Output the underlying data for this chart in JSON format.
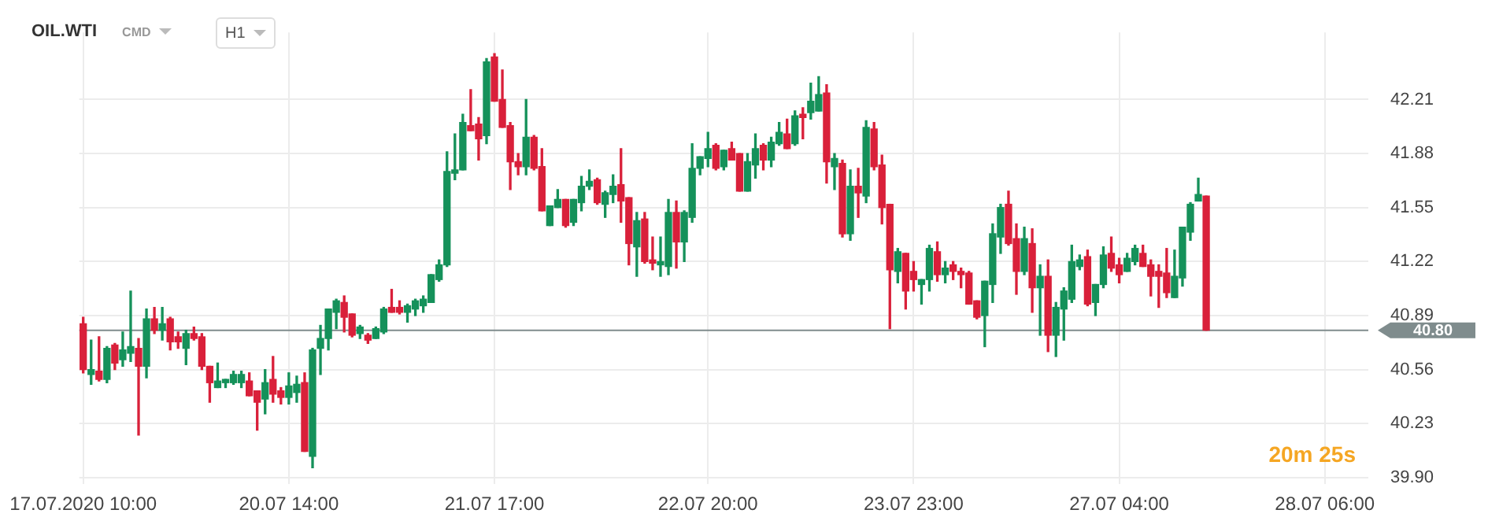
{
  "chart_data": {
    "type": "candlestick",
    "title": "OIL.WTI",
    "subtitle": "CMD",
    "annotations": [
      "H1",
      "20m 25s"
    ],
    "categories": [
      "17.07.2020 10:00",
      null,
      null,
      null,
      null,
      null,
      null,
      null,
      null,
      null,
      null,
      null,
      null,
      null,
      null,
      null,
      null,
      null,
      null,
      null,
      null,
      null,
      null,
      null,
      null,
      null,
      "20.07 14:00",
      null,
      null,
      null,
      null,
      null,
      null,
      null,
      null,
      null,
      null,
      null,
      null,
      null,
      null,
      null,
      null,
      null,
      null,
      null,
      null,
      null,
      null,
      null,
      null,
      null,
      "21.07 17:00",
      null,
      null,
      null,
      null,
      null,
      null,
      null,
      null,
      null,
      null,
      null,
      null,
      null,
      null,
      null,
      null,
      null,
      null,
      null,
      null,
      null,
      null,
      null,
      null,
      null,
      null,
      "22.07 20:00",
      null,
      null,
      null,
      null,
      null,
      null,
      null,
      null,
      null,
      null,
      null,
      null,
      null,
      null,
      null,
      null,
      null,
      null,
      null,
      null,
      null,
      null,
      null,
      null,
      null,
      "23.07 23:00",
      null,
      null,
      null,
      null,
      null,
      null,
      null,
      null,
      null,
      null,
      null,
      null,
      null,
      null,
      null,
      null,
      null,
      null,
      null,
      null,
      null,
      null,
      null,
      null,
      null,
      "27.07 04:00",
      null,
      null,
      null,
      null,
      null,
      null,
      null,
      null,
      null,
      null,
      null,
      null,
      null,
      null,
      null,
      null,
      null,
      null,
      null,
      null,
      null,
      null,
      null,
      null,
      null,
      "28.07 06:00",
      null,
      null,
      null,
      null,
      null
    ],
    "ohlc": [
      [
        40.84,
        40.88,
        40.54,
        40.56
      ],
      [
        40.53,
        40.74,
        40.47,
        40.56
      ],
      [
        40.55,
        40.76,
        40.49,
        40.5
      ],
      [
        40.5,
        40.7,
        40.48,
        40.69
      ],
      [
        40.71,
        40.72,
        40.56,
        40.6
      ],
      [
        40.62,
        40.79,
        40.58,
        40.68
      ],
      [
        40.66,
        41.04,
        40.61,
        40.7
      ],
      [
        40.69,
        40.75,
        40.16,
        40.58
      ],
      [
        40.58,
        40.93,
        40.51,
        40.87
      ],
      [
        40.87,
        40.94,
        40.78,
        40.8
      ],
      [
        40.8,
        40.94,
        40.74,
        40.84
      ],
      [
        40.87,
        40.88,
        40.68,
        40.73
      ],
      [
        40.76,
        40.79,
        40.69,
        40.73
      ],
      [
        40.69,
        40.8,
        40.59,
        40.78
      ],
      [
        40.78,
        40.82,
        40.74,
        40.75
      ],
      [
        40.76,
        40.78,
        40.56,
        40.58
      ],
      [
        40.58,
        40.58,
        40.36,
        40.48
      ],
      [
        40.45,
        40.6,
        40.45,
        40.49
      ],
      [
        40.48,
        40.5,
        40.45,
        40.5
      ],
      [
        40.48,
        40.55,
        40.47,
        40.53
      ],
      [
        40.48,
        40.55,
        40.45,
        40.53
      ],
      [
        40.49,
        40.54,
        40.4,
        40.4
      ],
      [
        40.43,
        40.43,
        40.19,
        40.36
      ],
      [
        40.38,
        40.56,
        40.29,
        40.48
      ],
      [
        40.5,
        40.64,
        40.36,
        40.41
      ],
      [
        40.43,
        40.45,
        40.35,
        40.39
      ],
      [
        40.39,
        40.54,
        40.35,
        40.46
      ],
      [
        40.42,
        40.52,
        40.36,
        40.47
      ],
      [
        40.48,
        40.54,
        40.06,
        40.06
      ],
      [
        40.03,
        40.69,
        39.96,
        40.68
      ],
      [
        40.69,
        40.83,
        40.53,
        40.75
      ],
      [
        40.75,
        40.93,
        40.68,
        40.93
      ],
      [
        40.91,
        40.99,
        40.81,
        40.98
      ],
      [
        40.97,
        41.01,
        40.79,
        40.88
      ],
      [
        40.9,
        40.9,
        40.76,
        40.77
      ],
      [
        40.78,
        40.83,
        40.75,
        40.82
      ],
      [
        40.77,
        40.78,
        40.72,
        40.74
      ],
      [
        40.75,
        40.82,
        40.75,
        40.81
      ],
      [
        40.79,
        40.94,
        40.78,
        40.93
      ],
      [
        40.94,
        41.05,
        40.91,
        40.91
      ],
      [
        40.94,
        40.98,
        40.9,
        40.91
      ],
      [
        40.91,
        40.96,
        40.85,
        40.95
      ],
      [
        40.93,
        40.99,
        40.89,
        40.98
      ],
      [
        40.95,
        41.01,
        40.91,
        40.99
      ],
      [
        40.97,
        41.14,
        40.97,
        41.14
      ],
      [
        41.11,
        41.23,
        41.1,
        41.2
      ],
      [
        41.2,
        41.89,
        41.19,
        41.77
      ],
      [
        41.76,
        42.0,
        41.72,
        41.78
      ],
      [
        41.78,
        42.12,
        41.78,
        42.07
      ],
      [
        42.05,
        42.27,
        42.02,
        42.02
      ],
      [
        42.06,
        42.1,
        41.84,
        41.97
      ],
      [
        41.99,
        42.46,
        41.94,
        42.44
      ],
      [
        42.47,
        42.49,
        42.2,
        42.2
      ],
      [
        42.21,
        42.39,
        42.04,
        42.04
      ],
      [
        42.05,
        42.07,
        41.66,
        41.83
      ],
      [
        41.83,
        41.88,
        41.75,
        41.8
      ],
      [
        41.8,
        42.21,
        41.75,
        41.98
      ],
      [
        41.98,
        41.99,
        41.78,
        41.79
      ],
      [
        41.8,
        41.91,
        41.53,
        41.53
      ],
      [
        41.44,
        41.56,
        41.44,
        41.56
      ],
      [
        41.55,
        41.66,
        41.55,
        41.6
      ],
      [
        41.6,
        41.6,
        41.43,
        41.44
      ],
      [
        41.46,
        41.6,
        41.44,
        41.6
      ],
      [
        41.58,
        41.74,
        41.53,
        41.68
      ],
      [
        41.68,
        41.78,
        41.66,
        41.71
      ],
      [
        41.72,
        41.73,
        41.57,
        41.58
      ],
      [
        41.57,
        41.65,
        41.49,
        41.64
      ],
      [
        41.63,
        41.75,
        41.58,
        41.68
      ],
      [
        41.69,
        41.91,
        41.46,
        41.59
      ],
      [
        41.61,
        41.61,
        41.2,
        41.33
      ],
      [
        41.31,
        41.52,
        41.13,
        41.47
      ],
      [
        41.48,
        41.52,
        41.21,
        41.22
      ],
      [
        41.23,
        41.37,
        41.17,
        41.21
      ],
      [
        41.2,
        41.37,
        41.13,
        41.22
      ],
      [
        41.19,
        41.6,
        41.14,
        41.52
      ],
      [
        41.52,
        41.59,
        41.18,
        41.34
      ],
      [
        41.34,
        41.53,
        41.22,
        41.52
      ],
      [
        41.49,
        41.94,
        41.46,
        41.79
      ],
      [
        41.79,
        41.86,
        41.75,
        41.86
      ],
      [
        41.85,
        42.01,
        41.8,
        41.91
      ],
      [
        41.93,
        41.94,
        41.78,
        41.79
      ],
      [
        41.8,
        41.9,
        41.78,
        41.9
      ],
      [
        41.91,
        41.95,
        41.84,
        41.84
      ],
      [
        41.88,
        41.88,
        41.65,
        41.65
      ],
      [
        41.65,
        41.88,
        41.65,
        41.83
      ],
      [
        41.81,
        42.0,
        41.73,
        41.91
      ],
      [
        41.93,
        41.94,
        41.78,
        41.84
      ],
      [
        41.84,
        41.98,
        41.8,
        41.95
      ],
      [
        41.94,
        42.07,
        41.93,
        42.01
      ],
      [
        42.0,
        42.09,
        41.91,
        41.91
      ],
      [
        41.94,
        42.14,
        41.93,
        42.11
      ],
      [
        42.12,
        42.16,
        41.97,
        42.1
      ],
      [
        42.13,
        42.31,
        42.09,
        42.2
      ],
      [
        42.14,
        42.35,
        42.14,
        42.24
      ],
      [
        42.25,
        42.3,
        41.7,
        41.83
      ],
      [
        41.8,
        41.88,
        41.66,
        41.85
      ],
      [
        41.82,
        41.84,
        41.37,
        41.39
      ],
      [
        41.39,
        41.78,
        41.35,
        41.68
      ],
      [
        41.68,
        41.79,
        41.49,
        41.64
      ],
      [
        41.62,
        42.08,
        41.58,
        42.04
      ],
      [
        42.03,
        42.07,
        41.78,
        41.8
      ],
      [
        41.81,
        41.87,
        41.45,
        41.55
      ],
      [
        41.57,
        41.57,
        40.81,
        41.17
      ],
      [
        41.16,
        41.3,
        41.09,
        41.28
      ],
      [
        41.27,
        41.27,
        40.93,
        41.04
      ],
      [
        41.16,
        41.22,
        41.04,
        41.11
      ],
      [
        41.08,
        41.11,
        40.96,
        41.11
      ],
      [
        41.11,
        41.32,
        41.04,
        41.3
      ],
      [
        41.28,
        41.34,
        41.1,
        41.14
      ],
      [
        41.14,
        41.22,
        41.09,
        41.18
      ],
      [
        41.2,
        41.22,
        41.11,
        41.16
      ],
      [
        41.16,
        41.18,
        41.06,
        41.14
      ],
      [
        41.15,
        41.16,
        40.96,
        40.96
      ],
      [
        40.98,
        40.98,
        40.87,
        40.88
      ],
      [
        40.89,
        41.1,
        40.7,
        41.1
      ],
      [
        41.08,
        41.45,
        40.97,
        41.39
      ],
      [
        41.37,
        41.57,
        41.27,
        41.55
      ],
      [
        41.57,
        41.65,
        41.32,
        41.33
      ],
      [
        41.36,
        41.45,
        41.02,
        41.16
      ],
      [
        41.16,
        41.43,
        41.14,
        41.36
      ],
      [
        41.33,
        41.42,
        40.91,
        41.06
      ],
      [
        41.06,
        41.2,
        40.77,
        41.13
      ],
      [
        41.13,
        41.23,
        40.67,
        40.77
      ],
      [
        40.77,
        40.97,
        40.64,
        40.94
      ],
      [
        40.93,
        41.06,
        40.74,
        41.04
      ],
      [
        40.99,
        41.32,
        40.97,
        41.22
      ],
      [
        41.19,
        41.26,
        41.17,
        41.23
      ],
      [
        41.25,
        41.29,
        40.95,
        40.96
      ],
      [
        40.97,
        41.08,
        40.89,
        41.08
      ],
      [
        41.08,
        41.31,
        41.06,
        41.26
      ],
      [
        41.27,
        41.37,
        41.16,
        41.18
      ],
      [
        41.2,
        41.24,
        41.09,
        41.14
      ],
      [
        41.16,
        41.27,
        41.16,
        41.24
      ],
      [
        41.22,
        41.32,
        41.2,
        41.3
      ],
      [
        41.27,
        41.32,
        41.19,
        41.19
      ],
      [
        41.2,
        41.23,
        41.01,
        41.13
      ],
      [
        41.16,
        41.2,
        40.94,
        41.13
      ],
      [
        41.15,
        41.3,
        41.0,
        41.03
      ],
      [
        41.0,
        41.29,
        41.0,
        41.13
      ],
      [
        41.12,
        41.43,
        41.07,
        41.43
      ],
      [
        41.4,
        41.58,
        41.35,
        41.57
      ],
      [
        41.59,
        41.73,
        41.59,
        41.63
      ],
      [
        41.62,
        41.62,
        40.8,
        40.8
      ],
      null,
      null,
      null,
      null,
      null,
      null,
      null,
      null,
      null,
      null,
      null,
      null,
      null,
      null,
      null,
      null,
      null,
      null,
      null,
      null
    ],
    "colors": [
      "#d9203a",
      "#15915a",
      "#d9203a",
      "#15915a",
      "#d9203a",
      "#15915a",
      "#15915a",
      "#d9203a",
      "#15915a",
      "#d9203a",
      "#15915a",
      "#d9203a",
      "#d9203a",
      "#15915a",
      "#d9203a",
      "#d9203a",
      "#d9203a",
      "#15915a",
      "#15915a",
      "#15915a",
      "#15915a",
      "#d9203a",
      "#d9203a",
      "#15915a",
      "#d9203a",
      "#d9203a",
      "#15915a",
      "#15915a",
      "#d9203a",
      "#15915a",
      "#15915a",
      "#15915a",
      "#15915a",
      "#d9203a",
      "#d9203a",
      "#15915a",
      "#d9203a",
      "#15915a",
      "#15915a",
      "#d9203a",
      "#d9203a",
      "#15915a",
      "#15915a",
      "#15915a",
      "#15915a",
      "#15915a",
      "#15915a",
      "#15915a",
      "#15915a",
      "#d9203a",
      "#d9203a",
      "#15915a",
      "#d9203a",
      "#d9203a",
      "#d9203a",
      "#d9203a",
      "#15915a",
      "#d9203a",
      "#d9203a",
      "#15915a",
      "#15915a",
      "#d9203a",
      "#15915a",
      "#15915a",
      "#15915a",
      "#d9203a",
      "#15915a",
      "#15915a",
      "#d9203a",
      "#d9203a",
      "#15915a",
      "#d9203a",
      "#d9203a",
      "#15915a",
      "#15915a",
      "#d9203a",
      "#15915a",
      "#15915a",
      "#15915a",
      "#15915a",
      "#d9203a",
      "#15915a",
      "#d9203a",
      "#d9203a",
      "#15915a",
      "#15915a",
      "#d9203a",
      "#15915a",
      "#15915a",
      "#d9203a",
      "#15915a",
      "#d9203a",
      "#15915a",
      "#15915a",
      "#d9203a",
      "#15915a",
      "#d9203a",
      "#15915a",
      "#d9203a",
      "#15915a",
      "#d9203a",
      "#d9203a",
      "#d9203a",
      "#15915a",
      "#d9203a",
      "#d9203a",
      "#15915a",
      "#15915a",
      "#d9203a",
      "#15915a",
      "#d9203a",
      "#d9203a",
      "#d9203a",
      "#d9203a",
      "#15915a",
      "#15915a",
      "#15915a",
      "#d9203a",
      "#d9203a",
      "#15915a",
      "#d9203a",
      "#15915a",
      "#d9203a",
      "#15915a",
      "#15915a",
      "#15915a",
      "#15915a",
      "#d9203a",
      "#15915a",
      "#15915a",
      "#d9203a",
      "#d9203a",
      "#15915a",
      "#15915a",
      "#d9203a",
      "#d9203a",
      "#d9203a",
      "#d9203a",
      "#15915a",
      "#15915a",
      "#15915a",
      "#15915a",
      "#d9203a",
      null,
      null,
      null,
      null,
      null,
      null,
      null,
      null,
      null,
      null,
      null,
      null,
      null,
      null,
      null,
      null,
      null,
      null,
      null,
      null
    ],
    "ylim": [
      39.86,
      42.62
    ],
    "yticks": [
      {
        "value": 39.9,
        "label": "39.90"
      },
      {
        "value": 40.23,
        "label": "40.23"
      },
      {
        "value": 40.56,
        "label": "40.56"
      },
      {
        "value": 40.89,
        "label": "40.89"
      },
      {
        "value": 41.22,
        "label": "41.22"
      },
      {
        "value": 41.55,
        "label": "41.55"
      },
      {
        "value": 41.88,
        "label": "41.88"
      },
      {
        "value": 42.21,
        "label": "42.21"
      }
    ],
    "ref_lines": [
      {
        "axis": "y",
        "value": 40.8,
        "label": "40.80",
        "color": "#7f8c8d"
      }
    ],
    "grid": true,
    "legend": false
  }
}
